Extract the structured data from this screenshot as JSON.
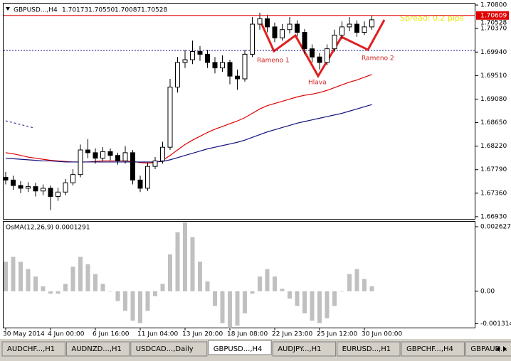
{
  "header": {
    "symbol": "GBPUSD...,H4",
    "ohlc": [
      "1.70173",
      "1.70550",
      "1.70087",
      "1.70528"
    ]
  },
  "annotations": [
    "Rameno 1",
    "Hlava",
    "Rameno 2",
    "Spread: 0.2 pips"
  ],
  "tabs": [
    "AUDCHF...,H1",
    "AUDNZD...,H1",
    "USDCAD...,Daily",
    "GBPUSD...,H4",
    "AUDJPY...,H1",
    "EURUSD...,H1",
    "GBPCHF...,H4",
    "GBPAUD..."
  ],
  "active_tab": "GBPUSD...,H4",
  "chart_data": [
    {
      "type": "candlestick",
      "categories": [
        "30 May 2014",
        null,
        null,
        null,
        null,
        null,
        "4 Jun 00:00",
        null,
        null,
        null,
        null,
        null,
        "6 Jun 16:00",
        null,
        null,
        null,
        null,
        null,
        "11 Jun 04:00",
        null,
        null,
        null,
        null,
        null,
        "13 Jun 20:00",
        null,
        null,
        null,
        null,
        null,
        "18 Jun 08:00",
        null,
        null,
        null,
        null,
        null,
        "22 Jun 23:00",
        null,
        null,
        null,
        null,
        null,
        "25 Jun 12:00",
        null,
        null,
        null,
        null,
        null,
        "30 Jun 00:00",
        null
      ],
      "open": [
        1.6765,
        1.676,
        1.675,
        1.6745,
        1.6748,
        1.674,
        1.6745,
        1.673,
        1.6738,
        1.6755,
        1.677,
        1.6815,
        1.681,
        1.68,
        1.6812,
        1.6805,
        1.6795,
        1.681,
        1.676,
        1.6745,
        1.6785,
        1.6795,
        1.682,
        1.693,
        1.6975,
        1.698,
        1.6995,
        1.699,
        1.6975,
        1.6965,
        1.6975,
        1.695,
        1.6945,
        1.699,
        1.7045,
        1.7055,
        1.704,
        1.702,
        1.7035,
        1.7045,
        1.703,
        1.7,
        1.6985,
        1.6975,
        1.7,
        1.7025,
        1.704,
        1.7045,
        1.703,
        1.704
      ],
      "high": [
        1.6775,
        1.6768,
        1.6758,
        1.6756,
        1.6755,
        1.6752,
        1.675,
        1.6746,
        1.6762,
        1.678,
        1.6825,
        1.6835,
        1.6818,
        1.682,
        1.6818,
        1.681,
        1.6822,
        1.6815,
        1.6768,
        1.6792,
        1.6802,
        1.683,
        1.6945,
        1.6985,
        1.6998,
        1.7015,
        1.7005,
        1.6998,
        1.6985,
        1.6988,
        1.698,
        1.6962,
        1.6998,
        1.7058,
        1.7066,
        1.7062,
        1.7048,
        1.7045,
        1.7058,
        1.7052,
        1.7036,
        1.7008,
        1.6992,
        1.7008,
        1.7035,
        1.705,
        1.7058,
        1.7052,
        1.705,
        1.7061
      ],
      "low": [
        1.6752,
        1.6742,
        1.6736,
        1.6738,
        1.673,
        1.6732,
        1.6705,
        1.6722,
        1.6732,
        1.675,
        1.6765,
        1.68,
        1.679,
        1.6795,
        1.6796,
        1.6788,
        1.679,
        1.6752,
        1.6738,
        1.674,
        1.678,
        1.679,
        1.6815,
        1.692,
        1.6965,
        1.6972,
        1.6978,
        1.6965,
        1.6955,
        1.6958,
        1.6935,
        1.6925,
        1.694,
        1.6985,
        1.7035,
        1.703,
        1.7012,
        1.7015,
        1.7028,
        1.7022,
        1.699,
        1.6975,
        1.6962,
        1.697,
        1.6995,
        1.7018,
        1.7032,
        1.7022,
        1.7025,
        1.7035
      ],
      "close": [
        1.676,
        1.675,
        1.6745,
        1.6748,
        1.674,
        1.6745,
        1.673,
        1.6738,
        1.6755,
        1.677,
        1.6815,
        1.681,
        1.68,
        1.6812,
        1.6805,
        1.6795,
        1.681,
        1.676,
        1.6745,
        1.6785,
        1.6795,
        1.682,
        1.693,
        1.6975,
        1.698,
        1.6995,
        1.699,
        1.6975,
        1.6965,
        1.6975,
        1.695,
        1.6945,
        1.699,
        1.7045,
        1.7055,
        1.704,
        1.702,
        1.7035,
        1.7045,
        1.703,
        1.7,
        1.6985,
        1.6975,
        1.7,
        1.7025,
        1.704,
        1.7045,
        1.703,
        1.704,
        1.7053
      ],
      "lines": [
        {
          "color": "#e00000",
          "values": [
            1.681,
            1.6808,
            1.6805,
            1.6802,
            1.68,
            1.6798,
            1.6796,
            1.6795,
            1.6794,
            1.6793,
            1.6793,
            1.6793,
            1.6794,
            1.6795,
            1.6795,
            1.6795,
            1.6795,
            1.6794,
            1.6792,
            1.6791,
            1.6792,
            1.6796,
            1.6805,
            1.6815,
            1.6825,
            1.6833,
            1.684,
            1.6847,
            1.6853,
            1.6858,
            1.6863,
            1.6868,
            1.6874,
            1.6882,
            1.689,
            1.6896,
            1.69,
            1.6904,
            1.6908,
            1.6912,
            1.6915,
            1.6917,
            1.692,
            1.6924,
            1.6929,
            1.6934,
            1.6939,
            1.6943,
            1.6948,
            1.6953
          ]
        },
        {
          "color": "#101080",
          "values": [
            1.68,
            1.6799,
            1.6798,
            1.6797,
            1.6796,
            1.6795,
            1.6795,
            1.6794,
            1.6793,
            1.6793,
            1.6793,
            1.6793,
            1.6793,
            1.6793,
            1.6793,
            1.6793,
            1.6793,
            1.6793,
            1.6793,
            1.6793,
            1.6793,
            1.6794,
            1.6797,
            1.6801,
            1.6805,
            1.6809,
            1.6813,
            1.6817,
            1.682,
            1.6823,
            1.6826,
            1.6829,
            1.6833,
            1.6838,
            1.6843,
            1.6848,
            1.6852,
            1.6856,
            1.686,
            1.6864,
            1.6867,
            1.687,
            1.6873,
            1.6876,
            1.6879,
            1.6882,
            1.6886,
            1.689,
            1.6894,
            1.6898
          ]
        }
      ],
      "ask_line": {
        "value": 1.70609,
        "label": "1.70609"
      },
      "bid_label": {
        "value": 1.70528,
        "label": "1.70528"
      },
      "level_line": 1.6997,
      "ylim": [
        1.6689,
        1.7084
      ],
      "yticks": [
        {
          "value": 1.708,
          "label": "1.70800"
        },
        {
          "value": 1.7037,
          "label": "1.70370"
        },
        {
          "value": 1.6994,
          "label": "1.69940"
        },
        {
          "value": 1.6951,
          "label": "1.69510"
        },
        {
          "value": 1.6908,
          "label": "1.69080"
        },
        {
          "value": 1.6865,
          "label": "1.68650"
        },
        {
          "value": 1.6822,
          "label": "1.68220"
        },
        {
          "value": 1.6779,
          "label": "1.67790"
        },
        {
          "value": 1.6736,
          "label": "1.67360"
        },
        {
          "value": 1.6693,
          "label": "1.66930"
        }
      ]
    },
    {
      "type": "bar",
      "title": "OsMA(12,26,9) 0.0001291",
      "color": "#c0c0c0",
      "values": [
        0.0012,
        0.0014,
        0.0012,
        0.0009,
        0.0006,
        0.0002,
        -0.0001,
        -0.0001,
        0.0003,
        0.001,
        0.0014,
        0.0011,
        0.0007,
        0.0003,
        0.0,
        -0.0004,
        -0.0008,
        -0.0012,
        -0.0013,
        -0.0008,
        -0.0002,
        0.0003,
        0.0015,
        0.0024,
        0.0028,
        0.0022,
        0.0012,
        0.0004,
        -0.0006,
        -0.0013,
        -0.0015,
        -0.0014,
        -0.0009,
        -0.0001,
        0.0006,
        0.0009,
        0.0006,
        0.0001,
        -0.0003,
        -0.0006,
        -0.0009,
        -0.0012,
        -0.0013,
        -0.0011,
        -0.0006,
        0.0,
        0.0007,
        0.0009,
        0.0005,
        0.0002
      ],
      "ylim": [
        -0.00145,
        0.00283
      ],
      "yticks": [
        0.002627,
        {
          "value": 0,
          "label": "0.00"
        },
        -0.001314
      ]
    }
  ]
}
